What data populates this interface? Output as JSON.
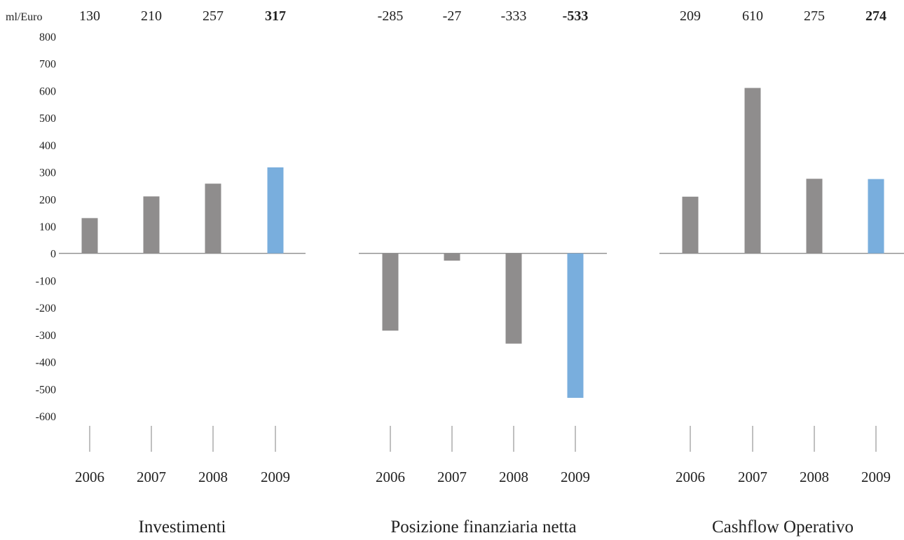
{
  "chart_data": {
    "type": "bar",
    "unit_label": "ml/Euro",
    "y_ticks": [
      "800",
      "700",
      "600",
      "500",
      "400",
      "300",
      "200",
      "100",
      "0",
      "-100",
      "-200",
      "-300",
      "-400",
      "-500",
      "-600"
    ],
    "ylim": [
      -600,
      800
    ],
    "grid": false,
    "categories": [
      "2006",
      "2007",
      "2008",
      "2009"
    ],
    "colors": {
      "bar": "#8f8d8d",
      "highlight": "#79aedd",
      "axis": "#808080"
    },
    "panels": [
      {
        "title": "Investimenti",
        "value_labels": [
          "130",
          "210",
          "257",
          "317"
        ],
        "values": [
          130,
          210,
          257,
          317
        ],
        "highlight_index": 3
      },
      {
        "title": "Posizione finanziaria netta",
        "value_labels": [
          "-285",
          "-27",
          "-333",
          "-533"
        ],
        "values": [
          -285,
          -27,
          -333,
          -533
        ],
        "highlight_index": 3
      },
      {
        "title": "Cashflow Operativo",
        "value_labels": [
          "209",
          "610",
          "275",
          "274"
        ],
        "values": [
          209,
          610,
          275,
          274
        ],
        "highlight_index": 3
      }
    ]
  }
}
